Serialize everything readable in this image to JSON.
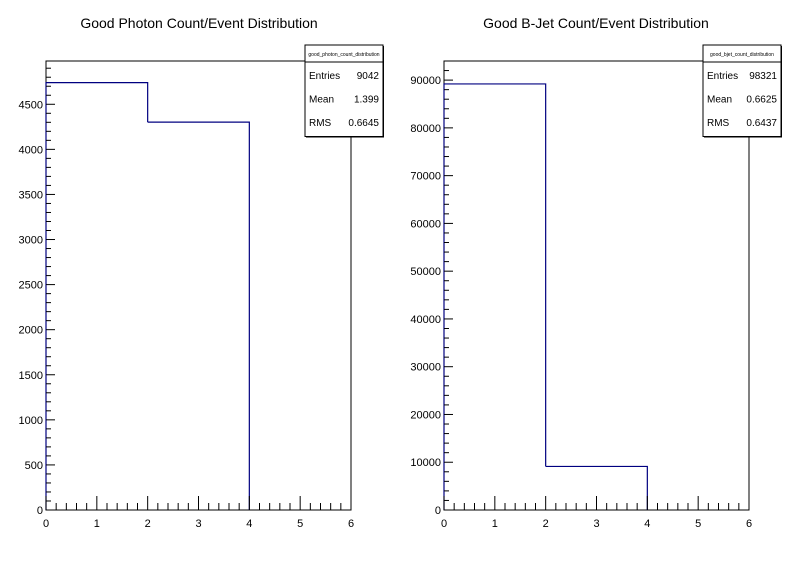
{
  "chart_data": [
    {
      "type": "histogram",
      "title": "Good Photon Count/Event Distribution",
      "stats": {
        "name": "good_photon_count_distribution",
        "rows": [
          {
            "label": "Entries",
            "value": "9042"
          },
          {
            "label": "Mean",
            "value": "1.399"
          },
          {
            "label": "RMS",
            "value": "0.6645"
          }
        ]
      },
      "bin_edges": [
        0,
        2,
        4,
        6
      ],
      "values": [
        4740,
        4302,
        0
      ],
      "xlim": [
        0,
        6
      ],
      "ylim": [
        0,
        4980
      ],
      "xticks": [
        0,
        1,
        2,
        3,
        4,
        5,
        6
      ],
      "yticks": [
        0,
        500,
        1000,
        1500,
        2000,
        2500,
        3000,
        3500,
        4000,
        4500
      ],
      "line_color": "#000080"
    },
    {
      "type": "histogram",
      "title": "Good B-Jet Count/Event Distribution",
      "stats": {
        "name": "good_bjet_count_distribution",
        "rows": [
          {
            "label": "Entries",
            "value": "98321"
          },
          {
            "label": "Mean",
            "value": "0.6625"
          },
          {
            "label": "RMS",
            "value": "0.6437"
          }
        ]
      },
      "bin_edges": [
        0,
        2,
        4,
        6
      ],
      "values": [
        89200,
        9120,
        0
      ],
      "xlim": [
        0,
        6
      ],
      "ylim": [
        0,
        94000
      ],
      "xticks": [
        0,
        1,
        2,
        3,
        4,
        5,
        6
      ],
      "yticks": [
        0,
        10000,
        20000,
        30000,
        40000,
        50000,
        60000,
        70000,
        80000,
        90000
      ],
      "line_color": "#000080"
    }
  ]
}
